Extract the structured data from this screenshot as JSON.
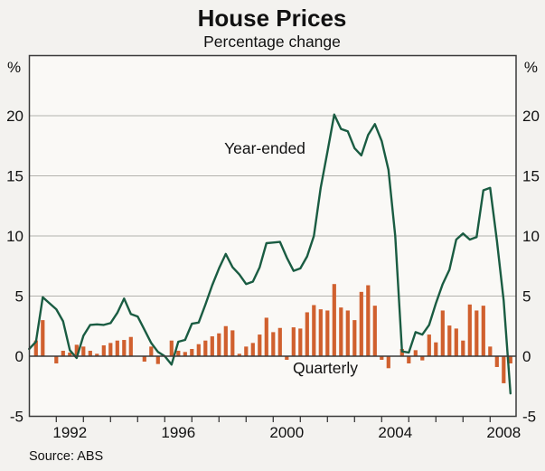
{
  "header": {
    "title": "House Prices",
    "subtitle": "Percentage change"
  },
  "footer": {
    "source_text": "Source: ABS"
  },
  "series_labels": {
    "line": "Year-ended",
    "bar": "Quarterly"
  },
  "axis": {
    "unit_left": "%",
    "unit_right": "%",
    "y_tick_labels": [
      20,
      15,
      10,
      5,
      0,
      -5
    ],
    "x_year_labels": [
      "1992",
      "1996",
      "2000",
      "2004",
      "2008"
    ]
  },
  "colors": {
    "line": "#1a5c42",
    "bar": "#d0602e",
    "grid": "#b3b2ae",
    "axis": "#3a3a3a",
    "background": "#f3f2ef",
    "plot_background": "#faf9f6"
  },
  "chart_data": {
    "type": "bar+line",
    "frequency": "quarterly",
    "x_start": "1990-Q4",
    "x_end": "2008-Q3",
    "ylim": [
      -5,
      25
    ],
    "gridlines_at": [
      5,
      10,
      15,
      20
    ],
    "zero_line": true,
    "grid": true,
    "legend_position": "inline-annotations",
    "title": "House Prices",
    "subtitle": "Percentage change",
    "ylabel": "%",
    "series": [
      {
        "name": "Year-ended",
        "type": "line",
        "values": [
          0.6,
          1.2,
          4.9,
          4.4,
          3.9,
          2.9,
          0.5,
          -0.15,
          1.7,
          2.6,
          2.65,
          2.6,
          2.75,
          3.6,
          4.8,
          3.5,
          3.3,
          2.2,
          1.1,
          0.35,
          0.0,
          -0.7,
          1.2,
          1.35,
          2.7,
          2.8,
          4.3,
          5.9,
          7.3,
          8.5,
          7.4,
          6.8,
          6.0,
          6.2,
          7.4,
          9.4,
          9.45,
          9.5,
          8.2,
          7.1,
          7.3,
          8.3,
          10.0,
          14.0,
          17.0,
          20.1,
          18.9,
          18.7,
          17.3,
          16.7,
          18.4,
          19.3,
          17.9,
          15.5,
          10.0,
          0.4,
          0.3,
          2.0,
          1.8,
          2.6,
          4.4,
          6.0,
          7.2,
          9.7,
          10.2,
          9.7,
          9.9,
          13.8,
          14.0,
          9.6,
          4.6,
          -3.1
        ]
      },
      {
        "name": "Quarterly",
        "type": "bar",
        "values": [
          null,
          1.3,
          3.0,
          0,
          -0.6,
          0.45,
          0.3,
          0.95,
          0.8,
          0.45,
          0.2,
          0.9,
          1.1,
          1.3,
          1.35,
          1.6,
          0,
          -0.45,
          0.8,
          -0.65,
          0,
          1.3,
          0.45,
          0.35,
          0.6,
          1.0,
          1.3,
          1.65,
          1.9,
          2.5,
          2.15,
          0.2,
          0.8,
          1.1,
          1.8,
          3.2,
          2.0,
          2.35,
          -0.3,
          2.4,
          2.3,
          3.65,
          4.25,
          3.9,
          3.8,
          6.0,
          4.05,
          3.8,
          3.0,
          5.35,
          5.9,
          4.2,
          -0.3,
          -1.0,
          0,
          0.6,
          -0.6,
          0.5,
          -0.35,
          1.8,
          1.15,
          3.8,
          2.55,
          2.3,
          1.3,
          4.3,
          3.8,
          4.2,
          0.8,
          -0.9,
          -2.25,
          -0.6
        ]
      }
    ]
  }
}
